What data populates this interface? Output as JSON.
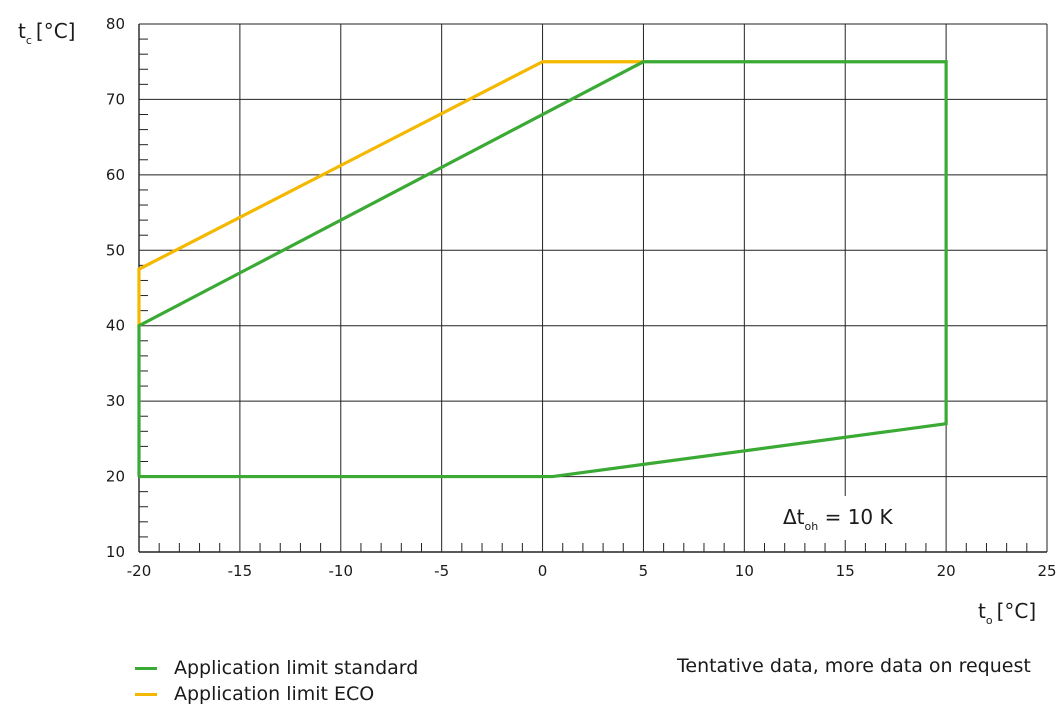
{
  "chart_data": {
    "type": "line",
    "x_axis": {
      "label_main": "t",
      "label_sub": "o",
      "label_unit": "[°C]",
      "range": [
        -20,
        25
      ],
      "ticks": [
        -20,
        -15,
        -10,
        -5,
        0,
        5,
        10,
        15,
        20,
        25
      ]
    },
    "y_axis": {
      "label_main": "t",
      "label_sub": "c",
      "label_unit": "[°C]",
      "range": [
        10,
        80
      ],
      "ticks": [
        10,
        20,
        30,
        40,
        50,
        60,
        70,
        80
      ]
    },
    "grid": true,
    "series": [
      {
        "name": "Application limit standard",
        "color": "#3aaa35",
        "points": [
          [
            -20,
            20
          ],
          [
            0.5,
            20
          ],
          [
            20,
            27
          ],
          [
            20,
            75
          ],
          [
            5,
            75
          ],
          [
            -20,
            40
          ],
          [
            -20,
            20
          ]
        ]
      },
      {
        "name": "Application limit ECO",
        "color": "#f5b800",
        "points": [
          [
            -20,
            40
          ],
          [
            -20,
            47.5
          ],
          [
            0,
            75
          ],
          [
            5,
            75
          ]
        ]
      }
    ],
    "annotation": {
      "main": "Δt",
      "sub": "oh",
      "rest": " = 10 K"
    }
  },
  "footnote": "Tentative data, more data on request"
}
